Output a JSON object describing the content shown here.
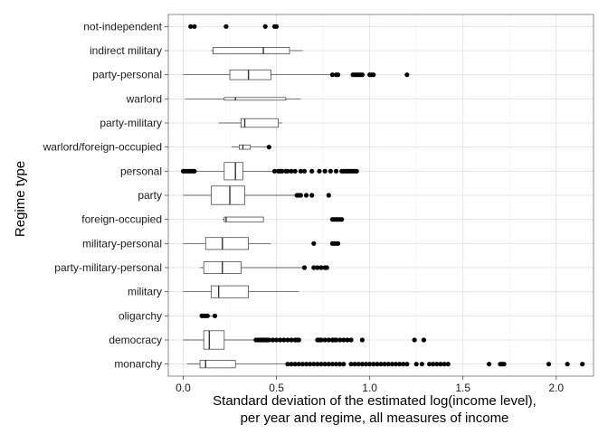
{
  "chart_data": {
    "type": "boxplot",
    "orientation": "horizontal",
    "xlabel_line1": "Standard deviation of the estimated log(income level),",
    "xlabel_line2": "per year and regime, all measures of income",
    "ylabel": "Regime type",
    "xlim": [
      -0.08,
      2.2
    ],
    "xticks": [
      0.0,
      0.5,
      1.0,
      1.5,
      2.0
    ],
    "xtick_labels": [
      "0.0",
      "0.5",
      "1.0",
      "1.5",
      "2.0"
    ],
    "grid": true,
    "categories": [
      "not-independent",
      "indirect military",
      "party-personal",
      "warlord",
      "party-military",
      "warlord/foreign-occupied",
      "personal",
      "party",
      "foreign-occupied",
      "military-personal",
      "party-military-personal",
      "military",
      "oligarchy",
      "democracy",
      "monarchy"
    ],
    "boxes": [
      {
        "category": "not-independent",
        "min": null,
        "q1": null,
        "median": null,
        "q3": null,
        "max": null,
        "width": 0,
        "points": [
          0.04,
          0.06,
          0.23,
          0.44,
          0.49,
          0.5
        ]
      },
      {
        "category": "indirect military",
        "min": 0.15,
        "q1": 0.16,
        "median": 0.43,
        "q3": 0.57,
        "max": 0.64,
        "width": 0.3,
        "points": []
      },
      {
        "category": "party-personal",
        "min": 0.0,
        "q1": 0.25,
        "median": 0.35,
        "q3": 0.47,
        "max": 0.8,
        "width": 0.45,
        "points": [
          0.8,
          0.82,
          0.83,
          0.91,
          0.92,
          0.93,
          0.94,
          0.95,
          0.96,
          1.0,
          1.01,
          1.02,
          1.2
        ]
      },
      {
        "category": "warlord",
        "min": 0.01,
        "q1": 0.22,
        "median": 0.28,
        "q3": 0.55,
        "max": 0.63,
        "width": 0.08,
        "points": []
      },
      {
        "category": "party-military",
        "min": 0.19,
        "q1": 0.31,
        "median": 0.33,
        "q3": 0.51,
        "max": 0.53,
        "width": 0.4,
        "points": []
      },
      {
        "category": "warlord/foreign-occupied",
        "min": 0.26,
        "q1": 0.3,
        "median": 0.32,
        "q3": 0.36,
        "max": 0.45,
        "width": 0.2,
        "points": [
          0.46
        ]
      },
      {
        "category": "personal",
        "min": 0.01,
        "q1": 0.22,
        "median": 0.28,
        "q3": 0.32,
        "max": 0.49,
        "width": 0.8,
        "points": [
          0.0,
          0.01,
          0.02,
          0.03,
          0.04,
          0.05,
          0.06,
          0.49,
          0.51,
          0.52,
          0.53,
          0.55,
          0.56,
          0.58,
          0.6,
          0.63,
          0.65,
          0.69,
          0.73,
          0.76,
          0.79,
          0.82,
          0.85,
          0.86,
          0.87,
          0.88,
          0.89,
          0.9,
          0.91,
          0.92,
          0.93
        ]
      },
      {
        "category": "party",
        "min": 0.0,
        "q1": 0.15,
        "median": 0.25,
        "q3": 0.33,
        "max": 0.6,
        "width": 0.85,
        "points": [
          0.61,
          0.62,
          0.63,
          0.66,
          0.69,
          0.78
        ]
      },
      {
        "category": "foreign-occupied",
        "min": 0.21,
        "q1": 0.22,
        "median": 0.23,
        "q3": 0.43,
        "max": 0.43,
        "width": 0.22,
        "points": [
          0.8,
          0.81,
          0.82,
          0.83,
          0.84,
          0.85
        ]
      },
      {
        "category": "military-personal",
        "min": 0.0,
        "q1": 0.12,
        "median": 0.21,
        "q3": 0.35,
        "max": 0.47,
        "width": 0.55,
        "points": [
          0.7,
          0.8,
          0.81,
          0.82,
          0.83
        ]
      },
      {
        "category": "party-military-personal",
        "min": 0.09,
        "q1": 0.11,
        "median": 0.21,
        "q3": 0.31,
        "max": 0.64,
        "width": 0.55,
        "points": [
          0.65,
          0.7,
          0.72,
          0.74,
          0.76,
          0.77
        ]
      },
      {
        "category": "military",
        "min": 0.0,
        "q1": 0.15,
        "median": 0.19,
        "q3": 0.35,
        "max": 0.62,
        "width": 0.55,
        "points": []
      },
      {
        "category": "oligarchy",
        "min": 0.1,
        "q1": 0.11,
        "median": 0.12,
        "q3": 0.13,
        "max": 0.17,
        "width": 0.12,
        "points": [
          0.1,
          0.11,
          0.12,
          0.13,
          0.17
        ]
      },
      {
        "category": "democracy",
        "min": 0.0,
        "q1": 0.11,
        "median": 0.14,
        "q3": 0.22,
        "max": 0.38,
        "width": 0.85,
        "points": [
          0.39,
          0.4,
          0.41,
          0.42,
          0.43,
          0.44,
          0.45,
          0.46,
          0.48,
          0.5,
          0.52,
          0.54,
          0.56,
          0.58,
          0.6,
          0.61,
          0.62,
          0.72,
          0.73,
          0.74,
          0.76,
          0.78,
          0.8,
          0.81,
          0.82,
          0.84,
          0.86,
          0.88,
          0.9,
          0.96,
          1.24,
          1.29
        ]
      },
      {
        "category": "monarchy",
        "min": 0.02,
        "q1": 0.09,
        "median": 0.12,
        "q3": 0.28,
        "max": 0.55,
        "width": 0.35,
        "points": [
          0.56,
          0.58,
          0.6,
          0.62,
          0.64,
          0.66,
          0.68,
          0.7,
          0.72,
          0.74,
          0.76,
          0.78,
          0.8,
          0.82,
          0.84,
          0.86,
          0.9,
          0.92,
          0.94,
          0.96,
          0.98,
          1.0,
          1.02,
          1.04,
          1.06,
          1.08,
          1.1,
          1.12,
          1.14,
          1.16,
          1.18,
          1.2,
          1.25,
          1.28,
          1.32,
          1.34,
          1.36,
          1.38,
          1.4,
          1.42,
          1.64,
          1.7,
          1.71,
          1.72,
          1.96,
          2.06,
          2.14
        ]
      }
    ]
  },
  "colors": {
    "panel_border": "#7f7f7f",
    "grid_major": "#dedede",
    "grid_minor": "#f0f0f0",
    "box_fill": "#ffffff",
    "box_stroke": "#333333",
    "point": "#000000"
  }
}
